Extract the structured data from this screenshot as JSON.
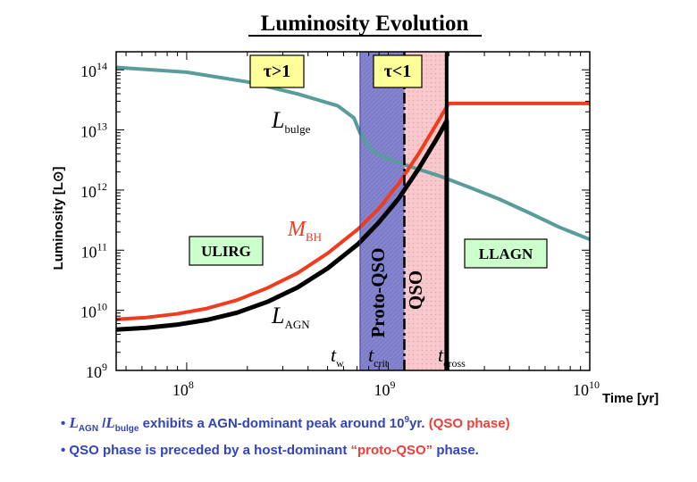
{
  "chart_data": {
    "type": "line",
    "title": "Luminosity Evolution",
    "xlabel": "Time  [yr]",
    "ylabel": "Luminosity [L",
    "ylabel_symbol": "⊙",
    "ylabel_close": "]",
    "x_scale": "log",
    "y_scale": "log",
    "xlim_log10": [
      7.65,
      10.0
    ],
    "ylim_log10": [
      9.0,
      14.3
    ],
    "x_ticks": [
      {
        "base": "10",
        "exp": "8",
        "v": 8
      },
      {
        "base": "10",
        "exp": "9",
        "v": 9
      },
      {
        "base": "10",
        "exp": "10",
        "v": 10
      }
    ],
    "y_ticks": [
      {
        "base": "10",
        "exp": "9",
        "v": 9
      },
      {
        "base": "10",
        "exp": "10",
        "v": 10
      },
      {
        "base": "10",
        "exp": "11",
        "v": 11
      },
      {
        "base": "10",
        "exp": "12",
        "v": 12
      },
      {
        "base": "10",
        "exp": "13",
        "v": 13
      },
      {
        "base": "10",
        "exp": "14",
        "v": 14
      }
    ],
    "series": [
      {
        "name": "L_bulge",
        "color": "#5a9c9c",
        "width": 4,
        "points": [
          [
            7.65,
            14.04
          ],
          [
            8.0,
            13.96
          ],
          [
            8.3,
            13.8
          ],
          [
            8.55,
            13.6
          ],
          [
            8.75,
            13.4
          ],
          [
            8.83,
            13.2
          ],
          [
            8.86,
            12.95
          ],
          [
            8.92,
            12.65
          ],
          [
            9.0,
            12.52
          ],
          [
            9.1,
            12.4
          ],
          [
            9.25,
            12.24
          ],
          [
            9.4,
            12.05
          ],
          [
            9.55,
            11.85
          ],
          [
            9.7,
            11.62
          ],
          [
            9.85,
            11.38
          ],
          [
            10.0,
            11.18
          ]
        ]
      },
      {
        "name": "M_BH",
        "color": "#f03c1e",
        "width": 4,
        "points": [
          [
            7.65,
            9.85
          ],
          [
            7.8,
            9.88
          ],
          [
            7.95,
            9.94
          ],
          [
            8.1,
            10.03
          ],
          [
            8.25,
            10.17
          ],
          [
            8.4,
            10.37
          ],
          [
            8.55,
            10.62
          ],
          [
            8.7,
            10.95
          ],
          [
            8.85,
            11.35
          ],
          [
            8.95,
            11.68
          ],
          [
            9.05,
            12.1
          ],
          [
            9.15,
            12.6
          ],
          [
            9.24,
            13.1
          ],
          [
            9.3,
            13.44
          ],
          [
            10.0,
            13.44
          ]
        ]
      },
      {
        "name": "L_AGN",
        "color": "#000000",
        "width": 5,
        "points": [
          [
            7.65,
            9.68
          ],
          [
            7.8,
            9.71
          ],
          [
            7.95,
            9.76
          ],
          [
            8.1,
            9.84
          ],
          [
            8.25,
            9.96
          ],
          [
            8.4,
            10.14
          ],
          [
            8.55,
            10.38
          ],
          [
            8.7,
            10.7
          ],
          [
            8.85,
            11.1
          ],
          [
            8.95,
            11.45
          ],
          [
            9.05,
            11.85
          ],
          [
            9.15,
            12.35
          ],
          [
            9.24,
            12.85
          ],
          [
            9.29,
            13.15
          ],
          [
            9.29,
            9.0
          ]
        ]
      }
    ],
    "vertical_lines": [
      {
        "name": "t_crit",
        "x": 9.08,
        "style": "dash-dot"
      },
      {
        "name": "t_cross",
        "x": 9.29,
        "style": "solid"
      }
    ],
    "shaded_regions": [
      {
        "name": "proto-qso-band",
        "x0": 8.86,
        "x1": 9.08,
        "fill": "#8585cf"
      },
      {
        "name": "qso-band",
        "x0": 9.08,
        "x1": 9.29,
        "fill": "#f7c8cc"
      }
    ],
    "annotations": {
      "tau_gt": "τ>1",
      "tau_lt": "τ<1",
      "ulirg": "ULIRG",
      "llagn": "LLAGN",
      "proto_qso": "Proto-QSO",
      "qso": "QSO",
      "l_bulge": {
        "main": "L",
        "sub": "bulge"
      },
      "m_bh": {
        "main": "M",
        "sub": "BH"
      },
      "l_agn": {
        "main": "L",
        "sub": "AGN"
      },
      "t_w": {
        "main": "t",
        "sub": "w"
      },
      "t_crit": {
        "main": "t",
        "sub": "crit"
      },
      "t_cross": {
        "main": "t",
        "sub": "cross"
      }
    },
    "colors": {
      "box_yellow": "#ffff99",
      "box_green": "#ccffcc",
      "axis": "#000000",
      "grid": "none"
    }
  },
  "bullets": {
    "b1": {
      "bullet": "•",
      "l": "L",
      "l_sub": "AGN",
      "slash": " /",
      "l2": "L",
      "l2_sub": "bulge",
      "text1": " exhibits a AGN-dominant peak around 10",
      "exp": "9",
      "text2": "yr.",
      "red": " (QSO phase)"
    },
    "b2": {
      "bullet": "•",
      "text1": " QSO phase is preceded by a host-dominant ",
      "red": "“proto-QSO”",
      "text2": " phase."
    }
  }
}
